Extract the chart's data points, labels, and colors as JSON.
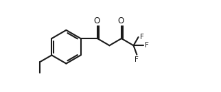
{
  "bg_color": "#ffffff",
  "line_color": "#1a1a1a",
  "text_color": "#1a1a1a",
  "line_width": 1.5,
  "font_size": 7.5,
  "fig_width": 3.22,
  "fig_height": 1.34,
  "dpi": 100,
  "xlim": [
    0,
    10.5
  ],
  "ylim": [
    0,
    5.5
  ]
}
